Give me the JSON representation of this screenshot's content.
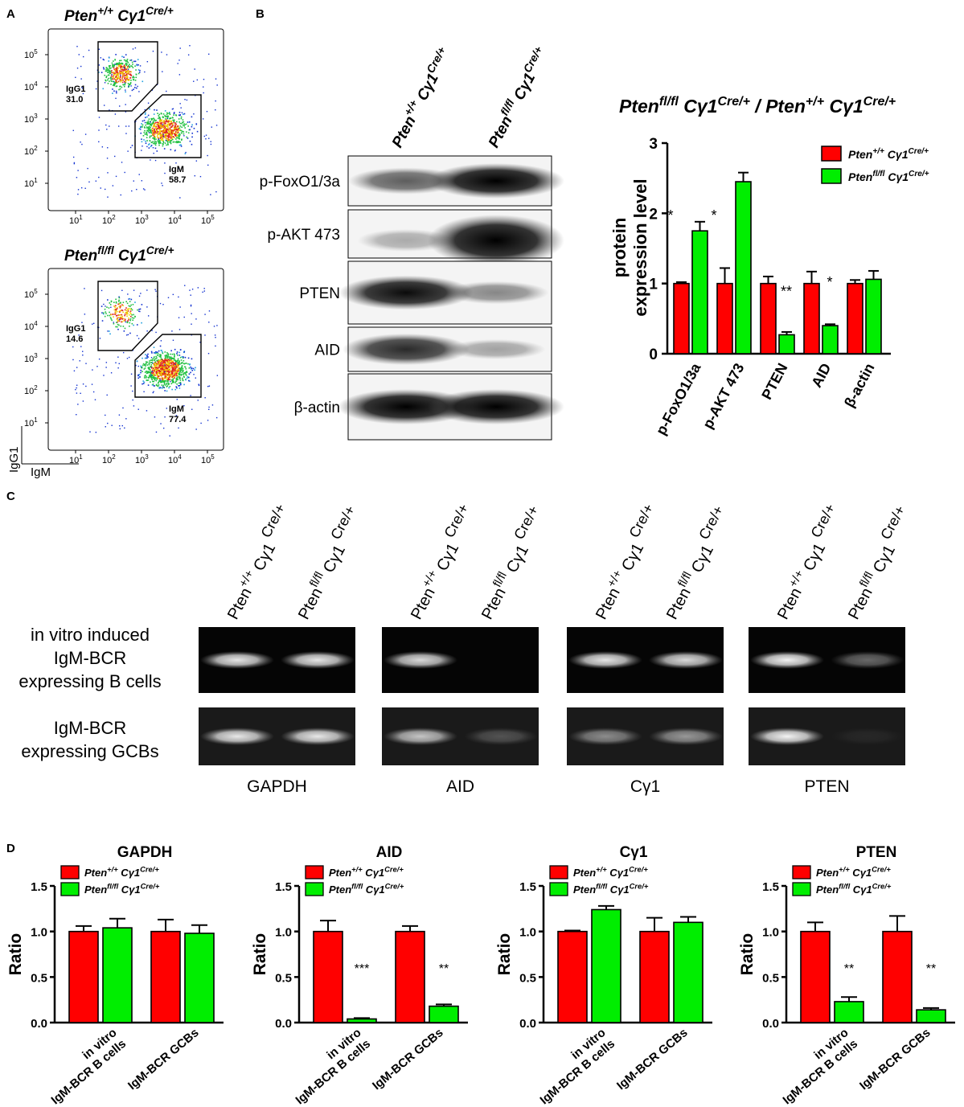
{
  "colors": {
    "wt": "#ff0000",
    "ko": "#00ee00",
    "axis": "#000000"
  },
  "panels": {
    "a": "A",
    "b": "B",
    "c": "C",
    "d": "D"
  },
  "panel_a": {
    "plots": [
      {
        "title": {
          "base": "Pten",
          "sup1": "+/+",
          "mid": "Cγ1",
          "sup2": "Cre/+"
        },
        "gates": [
          {
            "name": "IgG1",
            "value": "31.0"
          },
          {
            "name": "IgM",
            "value": "58.7"
          }
        ]
      },
      {
        "title": {
          "base": "Pten",
          "sup1": "fl/fl",
          "mid": "Cγ1",
          "sup2": "Cre/+"
        },
        "gates": [
          {
            "name": "IgG1",
            "value": "14.6"
          },
          {
            "name": "IgM",
            "value": "77.4"
          }
        ]
      }
    ],
    "tick_base": "10",
    "tick_exps": [
      "1",
      "2",
      "3",
      "4",
      "5"
    ],
    "y_axis": "IgG1",
    "x_axis": "IgM"
  },
  "panel_b": {
    "lanes": [
      {
        "base": "Pten",
        "sup1": "+/+",
        "mid": "Cγ1",
        "sup2": "Cre/+"
      },
      {
        "base": "Pten",
        "sup1": "fl/fl",
        "mid": "Cγ1",
        "sup2": "Cre/+"
      }
    ],
    "blots": [
      "p-FoxO1/3a",
      "p-AKT 473",
      "PTEN",
      "AID",
      "β-actin"
    ],
    "blot_bands": [
      [
        0.55,
        1.0
      ],
      [
        0.18,
        1.0
      ],
      [
        0.95,
        0.35
      ],
      [
        0.8,
        0.22
      ],
      [
        1.0,
        1.0
      ]
    ]
  },
  "panel_c": {
    "lanes": [
      {
        "base": "Pten",
        "sup1": "+/+",
        "mid": "Cγ1",
        "sup2": "Cre/+"
      },
      {
        "base": "Pten",
        "sup1": "fl/fl",
        "mid": "Cγ1",
        "sup2": "Cre/+"
      }
    ],
    "rows": [
      [
        "in vitro induced",
        "IgM-BCR",
        "expressing B cells"
      ],
      [
        "IgM-BCR",
        "expressing GCBs"
      ]
    ],
    "gels": [
      "GAPDH",
      "AID",
      "Cγ1",
      "PTEN"
    ],
    "band_intensity": [
      [
        [
          0.9,
          0.9
        ],
        [
          0.9,
          0.9
        ]
      ],
      [
        [
          0.85,
          0.0
        ],
        [
          0.75,
          0.25
        ]
      ],
      [
        [
          0.9,
          0.85
        ],
        [
          0.5,
          0.55
        ]
      ],
      [
        [
          0.95,
          0.4
        ],
        [
          0.95,
          0.06
        ]
      ]
    ]
  },
  "chart_data": [
    {
      "type": "bar",
      "title": {
        "base": "Pten",
        "sup1": "fl/fl",
        "mid": "Cγ1",
        "sup2": "Cre/+",
        "sep": " / ",
        "base2": "Pten",
        "sup3": "+/+",
        "mid2": "Cγ1",
        "sup4": "Cre/+"
      },
      "ylabel": [
        "protein",
        "expression level"
      ],
      "categories": [
        "p-FoxO1/3a",
        "p-AKT 473",
        "PTEN",
        "AID",
        "β-actin"
      ],
      "ylim": [
        0,
        3
      ],
      "yticks": [
        0,
        1,
        2,
        3
      ],
      "legend": [
        {
          "base": "Pten",
          "sup": "+/+",
          "mid": "Cγ1",
          "sup2": "Cre/+"
        },
        {
          "base": "Pten",
          "sup": "fl/fl",
          "mid": "Cγ1",
          "sup2": "Cre/+"
        }
      ],
      "series": [
        {
          "values": [
            1.0,
            1.0,
            1.0,
            1.0,
            1.0
          ],
          "errors": [
            0.02,
            0.22,
            0.1,
            0.17,
            0.05
          ]
        },
        {
          "values": [
            1.75,
            2.45,
            0.27,
            0.4,
            1.06
          ],
          "errors": [
            0.13,
            0.13,
            0.04,
            0.02,
            0.12
          ]
        }
      ],
      "significance": [
        "*",
        "*",
        "**",
        "*",
        ""
      ],
      "sig_on_series": [
        0,
        0,
        1,
        1,
        -1
      ]
    },
    {
      "type": "bar",
      "title": "GAPDH",
      "ylabel": "Ratio",
      "categories": [
        [
          "in vitro",
          "IgM-BCR B cells"
        ],
        [
          "IgM-BCR GCBs"
        ]
      ],
      "ylim": [
        0,
        1.5
      ],
      "yticks": [
        "0.0",
        "0.5",
        "1.0",
        "1.5"
      ],
      "series": [
        {
          "values": [
            1.0,
            1.0
          ],
          "errors": [
            0.06,
            0.13
          ]
        },
        {
          "values": [
            1.04,
            0.98
          ],
          "errors": [
            0.1,
            0.09
          ]
        }
      ],
      "significance": [
        "",
        ""
      ]
    },
    {
      "type": "bar",
      "title": "AID",
      "ylabel": "Ratio",
      "categories": [
        [
          "in vitro",
          "IgM-BCR B cells"
        ],
        [
          "IgM-BCR GCBs"
        ]
      ],
      "ylim": [
        0,
        1.5
      ],
      "yticks": [
        "0.0",
        "0.5",
        "1.0",
        "1.5"
      ],
      "series": [
        {
          "values": [
            1.0,
            1.0
          ],
          "errors": [
            0.12,
            0.06
          ]
        },
        {
          "values": [
            0.04,
            0.18
          ],
          "errors": [
            0.01,
            0.02
          ]
        }
      ],
      "significance": [
        "***",
        "**"
      ]
    },
    {
      "type": "bar",
      "title": "Cγ1",
      "ylabel": "Ratio",
      "categories": [
        [
          "in vitro",
          "IgM-BCR B cells"
        ],
        [
          "IgM-BCR GCBs"
        ]
      ],
      "ylim": [
        0,
        1.5
      ],
      "yticks": [
        "0.0",
        "0.5",
        "1.0",
        "1.5"
      ],
      "series": [
        {
          "values": [
            1.0,
            1.0
          ],
          "errors": [
            0.01,
            0.15
          ]
        },
        {
          "values": [
            1.24,
            1.1
          ],
          "errors": [
            0.04,
            0.06
          ]
        }
      ],
      "significance": [
        "",
        ""
      ]
    },
    {
      "type": "bar",
      "title": "PTEN",
      "ylabel": "Ratio",
      "categories": [
        [
          "in vitro",
          "IgM-BCR B cells"
        ],
        [
          "IgM-BCR GCBs"
        ]
      ],
      "ylim": [
        0,
        1.5
      ],
      "yticks": [
        "0.0",
        "0.5",
        "1.0",
        "1.5"
      ],
      "series": [
        {
          "values": [
            1.0,
            1.0
          ],
          "errors": [
            0.1,
            0.17
          ]
        },
        {
          "values": [
            0.23,
            0.14
          ],
          "errors": [
            0.05,
            0.02
          ]
        }
      ],
      "significance": [
        "**",
        "**"
      ]
    }
  ]
}
